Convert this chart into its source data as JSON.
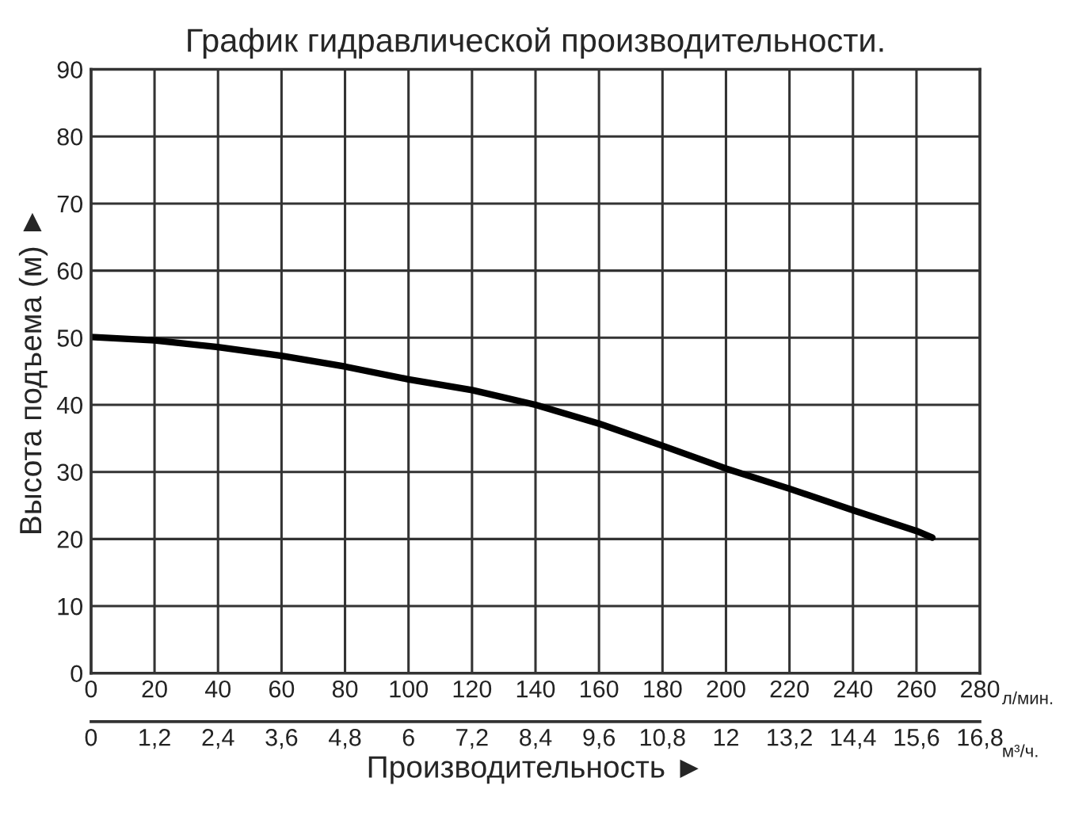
{
  "chart_data": {
    "type": "line",
    "title": "График гидравлической производительности.",
    "xlabel": "Производительность ►",
    "ylabel": "Высота подъема (м) ►",
    "annotations": [
      "л/мин.",
      "м³/ч."
    ],
    "series": [
      {
        "color": "#000000",
        "x": [
          0,
          20,
          40,
          60,
          80,
          100,
          120,
          140,
          160,
          180,
          200,
          220,
          240,
          260,
          265
        ],
        "values": [
          50.1,
          49.6,
          48.6,
          47.3,
          45.7,
          43.8,
          42.2,
          40,
          37.2,
          33.9,
          30.5,
          27.5,
          24.3,
          21.2,
          20.2
        ]
      }
    ],
    "xlim": [
      0,
      280
    ],
    "xticks": [
      0,
      20,
      40,
      60,
      80,
      100,
      120,
      140,
      160,
      180,
      200,
      220,
      240,
      260,
      280
    ],
    "x2lim": [
      0,
      16.8
    ],
    "x2ticks": [
      0,
      {
        "value": 1.2,
        "label": "1,2"
      },
      {
        "value": 2.4,
        "label": "2,4"
      },
      {
        "value": 3.6,
        "label": "3,6"
      },
      {
        "value": 4.8,
        "label": "4,8"
      },
      6,
      {
        "value": 7.2,
        "label": "7,2"
      },
      {
        "value": 8.4,
        "label": "8,4"
      },
      {
        "value": 9.6,
        "label": "9,6"
      },
      {
        "value": 10.8,
        "label": "10,8"
      },
      12,
      {
        "value": 13.2,
        "label": "13,2"
      },
      {
        "value": 14.4,
        "label": "14,4"
      },
      {
        "value": 15.6,
        "label": "15,6"
      },
      {
        "value": 16.8,
        "label": "16,8"
      }
    ],
    "ylim": [
      0,
      90
    ],
    "yticks": [
      0,
      10,
      20,
      30,
      40,
      50,
      60,
      70,
      80,
      90
    ],
    "grid": true,
    "marker": "none",
    "line_style": "solid"
  }
}
